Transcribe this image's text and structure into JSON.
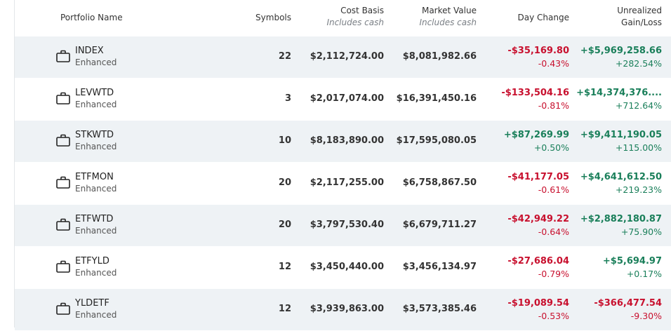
{
  "header": {
    "portfolio_name": "Portfolio Name",
    "symbols": "Symbols",
    "cost_basis": "Cost Basis",
    "cost_basis_sub": "Includes cash",
    "market_value": "Market Value",
    "market_value_sub": "Includes cash",
    "day_change": "Day Change",
    "unrealized_line1": "Unrealized",
    "unrealized_line2": "Gain/Loss"
  },
  "colors": {
    "negative": "#c8102e",
    "positive": "#1a7f5a",
    "row_shade": "#eef2f5"
  },
  "rows": [
    {
      "name": "INDEX",
      "type": "Enhanced",
      "symbols": "22",
      "cost_basis": "$2,112,724.00",
      "market_value": "$8,081,982.66",
      "day_change": "-$35,169.80",
      "day_change_pct": "-0.43%",
      "day_sign": "neg",
      "unrealized": "+$5,969,258.66",
      "unrealized_pct": "+282.54%",
      "unreal_sign": "pos"
    },
    {
      "name": "LEVWTD",
      "type": "Enhanced",
      "symbols": "3",
      "cost_basis": "$2,017,074.00",
      "market_value": "$16,391,450.16",
      "day_change": "-$133,504.16",
      "day_change_pct": "-0.81%",
      "day_sign": "neg",
      "unrealized": "+$14,374,376....",
      "unrealized_pct": "+712.64%",
      "unreal_sign": "pos"
    },
    {
      "name": "STKWTD",
      "type": "Enhanced",
      "symbols": "10",
      "cost_basis": "$8,183,890.00",
      "market_value": "$17,595,080.05",
      "day_change": "+$87,269.99",
      "day_change_pct": "+0.50%",
      "day_sign": "pos",
      "unrealized": "+$9,411,190.05",
      "unrealized_pct": "+115.00%",
      "unreal_sign": "pos"
    },
    {
      "name": "ETFMON",
      "type": "Enhanced",
      "symbols": "20",
      "cost_basis": "$2,117,255.00",
      "market_value": "$6,758,867.50",
      "day_change": "-$41,177.05",
      "day_change_pct": "-0.61%",
      "day_sign": "neg",
      "unrealized": "+$4,641,612.50",
      "unrealized_pct": "+219.23%",
      "unreal_sign": "pos"
    },
    {
      "name": "ETFWTD",
      "type": "Enhanced",
      "symbols": "20",
      "cost_basis": "$3,797,530.40",
      "market_value": "$6,679,711.27",
      "day_change": "-$42,949.22",
      "day_change_pct": "-0.64%",
      "day_sign": "neg",
      "unrealized": "+$2,882,180.87",
      "unrealized_pct": "+75.90%",
      "unreal_sign": "pos"
    },
    {
      "name": "ETFYLD",
      "type": "Enhanced",
      "symbols": "12",
      "cost_basis": "$3,450,440.00",
      "market_value": "$3,456,134.97",
      "day_change": "-$27,686.04",
      "day_change_pct": "-0.79%",
      "day_sign": "neg",
      "unrealized": "+$5,694.97",
      "unrealized_pct": "+0.17%",
      "unreal_sign": "pos"
    },
    {
      "name": "YLDETF",
      "type": "Enhanced",
      "symbols": "12",
      "cost_basis": "$3,939,863.00",
      "market_value": "$3,573,385.46",
      "day_change": "-$19,089.54",
      "day_change_pct": "-0.53%",
      "day_sign": "neg",
      "unrealized": "-$366,477.54",
      "unrealized_pct": "-9.30%",
      "unreal_sign": "neg"
    }
  ]
}
